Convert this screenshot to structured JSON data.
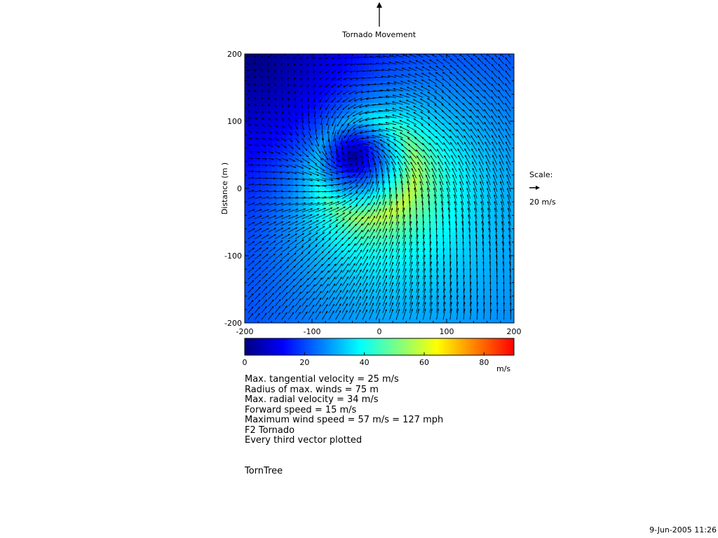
{
  "header": {
    "movement_label": "Tornado Movement"
  },
  "chart_data": {
    "type": "heatmap",
    "subtype": "vector-field",
    "title": "",
    "ylabel": "Distance (m )",
    "xlabel": "",
    "xlim": [
      -200,
      200
    ],
    "ylim": [
      -200,
      200
    ],
    "x_ticks": [
      "-200",
      "-100",
      "0",
      "100",
      "200"
    ],
    "y_ticks": [
      "200",
      "100",
      "0",
      "-100",
      "-200"
    ],
    "colorbar": {
      "range": [
        0,
        90
      ],
      "ticks": [
        "0",
        "20",
        "40",
        "60",
        "80"
      ],
      "unit": "m/s",
      "colors": [
        "#00007f",
        "#0000ff",
        "#007fff",
        "#00ffff",
        "#7fff7f",
        "#ffff00",
        "#ff7f00",
        "#ff0000"
      ]
    },
    "vortex": {
      "center": [
        -20,
        30
      ],
      "radius_max_winds": 75,
      "max_tangential_velocity": 25,
      "max_radial_velocity": 34,
      "forward_speed": 15,
      "max_wind_speed": 57
    },
    "scale": {
      "title": "Scale:",
      "value": "20 m/s"
    }
  },
  "info": {
    "lines": [
      "Max. tangential velocity = 25 m/s",
      "Radius of max. winds = 75 m",
      "Max. radial velocity = 34 m/s",
      "Forward speed = 15 m/s",
      "Maximum wind speed = 57 m/s = 127 mph",
      "F2 Tornado",
      "Every third vector plotted"
    ]
  },
  "footer": {
    "label": "TornTree",
    "timestamp": "9-Jun-2005 11:26"
  }
}
